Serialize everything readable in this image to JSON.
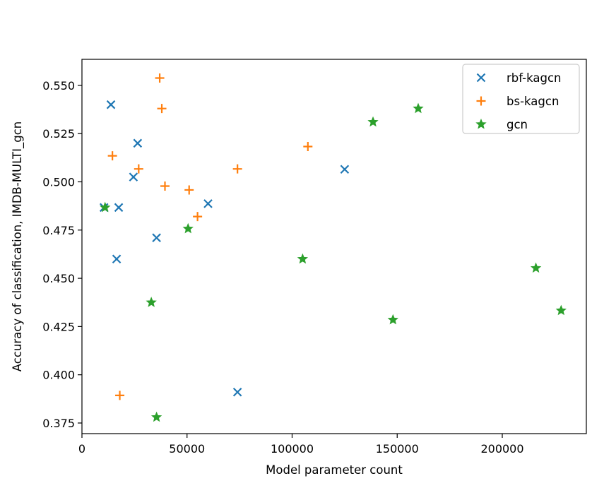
{
  "chart_data": {
    "type": "scatter",
    "title": "",
    "xlabel": "Model parameter count",
    "ylabel": "Accuracy of classification, IMDB-MULTI_gcn",
    "xlim": [
      0,
      240000
    ],
    "ylim": [
      0.3695,
      0.5635
    ],
    "xticks": [
      0,
      50000,
      100000,
      150000,
      200000
    ],
    "yticks": [
      0.375,
      0.4,
      0.425,
      0.45,
      0.475,
      0.5,
      0.525,
      0.55
    ],
    "xtick_labels": [
      "0",
      "50000",
      "100000",
      "150000",
      "200000"
    ],
    "ytick_labels": [
      "0.375",
      "0.400",
      "0.425",
      "0.450",
      "0.475",
      "0.500",
      "0.525",
      "0.550"
    ],
    "grid": false,
    "legend_position": "top-right",
    "series": [
      {
        "name": "rbf-kagcn",
        "color": "#1f77b4",
        "marker": "x",
        "points": [
          [
            13800,
            0.54
          ],
          [
            26500,
            0.52
          ],
          [
            24500,
            0.5025
          ],
          [
            17500,
            0.4867
          ],
          [
            10500,
            0.4867
          ],
          [
            16500,
            0.46
          ],
          [
            35500,
            0.471
          ],
          [
            60000,
            0.4887
          ],
          [
            125000,
            0.5065
          ],
          [
            74000,
            0.391
          ]
        ]
      },
      {
        "name": "bs-kagcn",
        "color": "#ff7f0e",
        "marker": "+",
        "points": [
          [
            37000,
            0.5538
          ],
          [
            38000,
            0.538
          ],
          [
            14500,
            0.5135
          ],
          [
            27000,
            0.5067
          ],
          [
            39500,
            0.4978
          ],
          [
            51000,
            0.4958
          ],
          [
            55000,
            0.482
          ],
          [
            74000,
            0.5067
          ],
          [
            107500,
            0.5183
          ],
          [
            18000,
            0.3893
          ]
        ]
      },
      {
        "name": "gcn",
        "color": "#2ca02c",
        "marker": "*",
        "points": [
          [
            11000,
            0.4867
          ],
          [
            33000,
            0.4375
          ],
          [
            35500,
            0.378
          ],
          [
            50500,
            0.4757
          ],
          [
            105000,
            0.46
          ],
          [
            138500,
            0.531
          ],
          [
            148000,
            0.4285
          ],
          [
            160000,
            0.538
          ],
          [
            216000,
            0.4553
          ],
          [
            228000,
            0.4333
          ]
        ]
      }
    ]
  }
}
